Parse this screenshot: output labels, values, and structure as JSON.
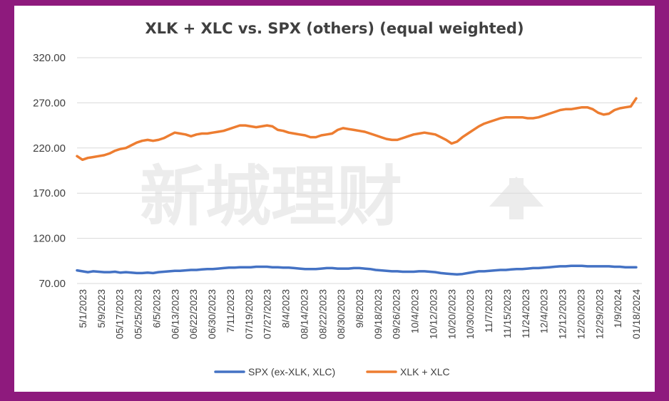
{
  "chart_data": {
    "type": "line",
    "title": "XLK + XLC vs. SPX (others) (equal weighted)",
    "xlabel": "",
    "ylabel": "",
    "ylim": [
      70,
      320
    ],
    "yticks": [
      "320.00",
      "270.00",
      "220.00",
      "170.00",
      "120.00",
      "70.00"
    ],
    "ytick_values": [
      320,
      270,
      220,
      170,
      120,
      70
    ],
    "grid": true,
    "legend_position": "bottom",
    "xticks": [
      "5/1/2023",
      "5/9/2023",
      "05/17/2023",
      "05/25/2023",
      "6/5/2023",
      "06/13/2023",
      "06/22/2023",
      "06/30/2023",
      "7/11/2023",
      "07/19/2023",
      "07/27/2023",
      "8/4/2023",
      "08/14/2023",
      "08/22/2023",
      "08/30/2023",
      "9/8/2023",
      "09/18/2023",
      "09/26/2023",
      "10/4/2023",
      "10/12/2023",
      "10/20/2023",
      "10/30/2023",
      "11/7/2023",
      "11/15/2023",
      "11/24/2023",
      "12/4/2023",
      "12/12/2023",
      "12/20/2023",
      "12/29/2023",
      "1/9/2024",
      "01/18/2024"
    ],
    "series": [
      {
        "name": "SPX (ex-XLK, XLC)",
        "color": "#4472c4",
        "values": [
          84.5,
          83.5,
          82.5,
          83.5,
          83.0,
          82.5,
          82.5,
          83.0,
          82.0,
          82.5,
          82.0,
          81.5,
          81.5,
          82.0,
          81.5,
          82.5,
          83.0,
          83.5,
          84.0,
          84.0,
          84.5,
          85.0,
          85.0,
          85.5,
          86.0,
          86.0,
          86.5,
          87.0,
          87.5,
          87.5,
          88.0,
          88.0,
          88.0,
          88.5,
          88.5,
          88.5,
          88.0,
          88.0,
          87.5,
          87.5,
          87.0,
          86.5,
          86.0,
          86.0,
          86.0,
          86.5,
          87.0,
          87.0,
          86.5,
          86.5,
          86.5,
          87.0,
          87.0,
          86.5,
          86.0,
          85.0,
          84.5,
          84.0,
          83.5,
          83.5,
          83.0,
          83.0,
          83.0,
          83.5,
          83.5,
          83.0,
          82.5,
          81.5,
          81.0,
          80.5,
          80.0,
          80.5,
          81.5,
          82.5,
          83.5,
          83.5,
          84.0,
          84.5,
          85.0,
          85.0,
          85.5,
          86.0,
          86.0,
          86.5,
          87.0,
          87.0,
          87.5,
          88.0,
          88.5,
          89.0,
          89.0,
          89.5,
          89.5,
          89.5,
          89.0,
          89.0,
          89.0,
          89.0,
          89.0,
          88.5,
          88.5,
          88.0,
          88.0,
          88.0
        ]
      },
      {
        "name": "XLK + XLC",
        "color": "#ed7d31",
        "values": [
          211.0,
          207.0,
          209.0,
          210.0,
          211.0,
          212.0,
          214.0,
          217.0,
          219.0,
          220.0,
          223.0,
          226.0,
          228.0,
          229.0,
          228.0,
          229.0,
          231.0,
          234.0,
          237.0,
          236.0,
          235.0,
          233.0,
          235.0,
          236.0,
          236.0,
          237.0,
          238.0,
          239.0,
          241.0,
          243.0,
          245.0,
          245.0,
          244.0,
          243.0,
          244.0,
          245.0,
          244.0,
          240.0,
          239.0,
          237.0,
          236.0,
          235.0,
          234.0,
          232.0,
          232.0,
          234.0,
          235.0,
          236.0,
          240.0,
          242.0,
          241.0,
          240.0,
          239.0,
          238.0,
          236.0,
          234.0,
          232.0,
          230.0,
          229.0,
          229.0,
          231.0,
          233.0,
          235.0,
          236.0,
          237.0,
          236.0,
          235.0,
          232.0,
          229.0,
          225.0,
          227.0,
          232.0,
          236.0,
          240.0,
          244.0,
          247.0,
          249.0,
          251.0,
          253.0,
          254.0,
          254.0,
          254.0,
          254.0,
          253.0,
          253.0,
          254.0,
          256.0,
          258.0,
          260.0,
          262.0,
          263.0,
          263.0,
          264.0,
          265.0,
          265.0,
          263.0,
          259.0,
          257.0,
          258.0,
          262.0,
          264.0,
          265.0,
          266.0,
          275.0
        ]
      }
    ]
  },
  "watermark": "新城理财"
}
